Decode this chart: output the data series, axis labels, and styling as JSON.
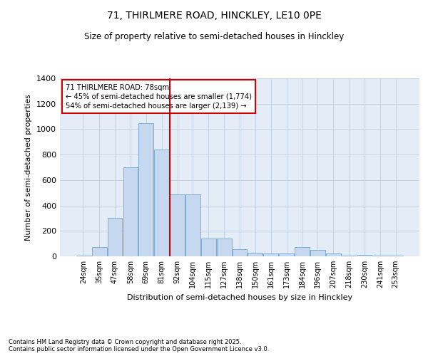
{
  "title_line1": "71, THIRLMERE ROAD, HINCKLEY, LE10 0PE",
  "title_line2": "Size of property relative to semi-detached houses in Hinckley",
  "xlabel": "Distribution of semi-detached houses by size in Hinckley",
  "ylabel": "Number of semi-detached properties",
  "categories": [
    "24sqm",
    "35sqm",
    "47sqm",
    "58sqm",
    "69sqm",
    "81sqm",
    "92sqm",
    "104sqm",
    "115sqm",
    "127sqm",
    "138sqm",
    "150sqm",
    "161sqm",
    "173sqm",
    "184sqm",
    "196sqm",
    "207sqm",
    "218sqm",
    "230sqm",
    "241sqm",
    "253sqm"
  ],
  "values": [
    5,
    75,
    300,
    700,
    1050,
    840,
    490,
    490,
    140,
    140,
    55,
    30,
    25,
    20,
    75,
    50,
    20,
    8,
    12,
    4,
    4
  ],
  "bar_color": "#c5d8f0",
  "bar_edge_color": "#7bafd4",
  "grid_color": "#c8d4e8",
  "background_color": "#e4ecf7",
  "vline_color": "#cc0000",
  "annotation_title": "71 THIRLMERE ROAD: 78sqm",
  "annotation_line1": "← 45% of semi-detached houses are smaller (1,774)",
  "annotation_line2": "54% of semi-detached houses are larger (2,139) →",
  "annotation_box_color": "white",
  "annotation_box_edge_color": "#cc0000",
  "footnote_line1": "Contains HM Land Registry data © Crown copyright and database right 2025.",
  "footnote_line2": "Contains public sector information licensed under the Open Government Licence v3.0.",
  "ylim": [
    0,
    1400
  ],
  "yticks": [
    0,
    200,
    400,
    600,
    800,
    1000,
    1200,
    1400
  ],
  "vline_pos": 5.5
}
